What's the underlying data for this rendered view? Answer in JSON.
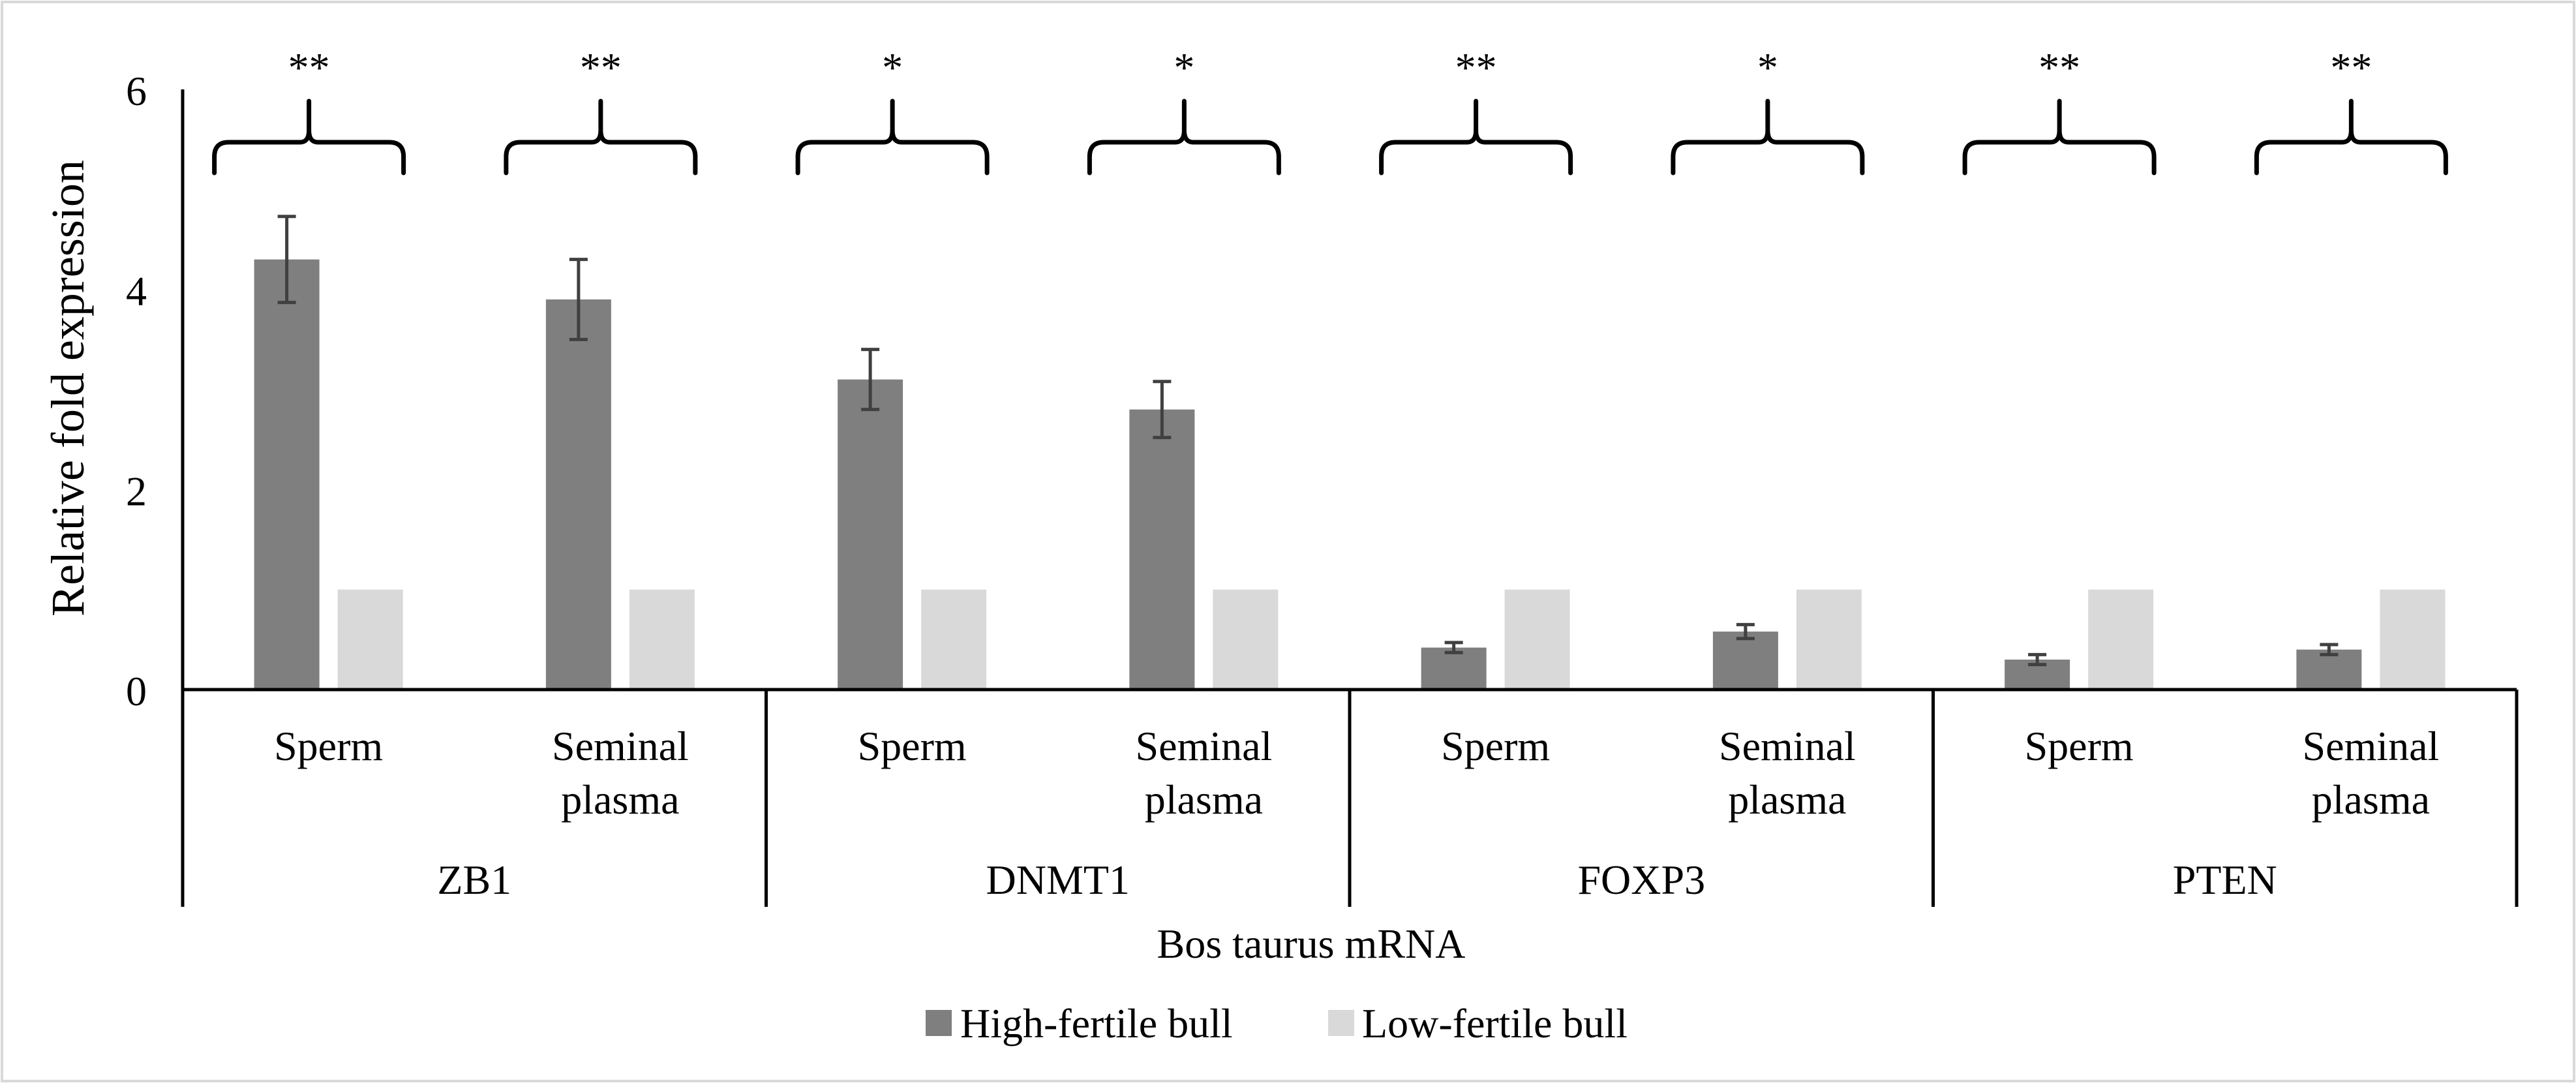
{
  "chart_data": {
    "type": "bar",
    "title": "",
    "xlabel": "Bos taurus mRNA",
    "ylabel": "Relative fold expression",
    "ylim": [
      0,
      6
    ],
    "yticks": [
      0,
      2,
      4,
      6
    ],
    "grid": false,
    "legend_position": "bottom-center",
    "groups": [
      {
        "name": "ZB1",
        "categories": [
          "Sperm",
          "Seminal plasma"
        ]
      },
      {
        "name": "DNMT1",
        "categories": [
          "Sperm",
          "Seminal plasma"
        ]
      },
      {
        "name": "FOXP3",
        "categories": [
          "Sperm",
          "Seminal plasma"
        ]
      },
      {
        "name": "PTEN",
        "categories": [
          "Sperm",
          "Seminal plasma"
        ]
      }
    ],
    "category_labels": [
      {
        "line1": "Sperm",
        "line2": ""
      },
      {
        "line1": "Seminal",
        "line2": "plasma"
      },
      {
        "line1": "Sperm",
        "line2": ""
      },
      {
        "line1": "Seminal",
        "line2": "plasma"
      },
      {
        "line1": "Sperm",
        "line2": ""
      },
      {
        "line1": "Seminal",
        "line2": "plasma"
      },
      {
        "line1": "Sperm",
        "line2": ""
      },
      {
        "line1": "Seminal",
        "line2": "plasma"
      }
    ],
    "series": [
      {
        "name": "High-fertile bull",
        "color": "#7f7f7f",
        "values": [
          4.3,
          3.9,
          3.1,
          2.8,
          0.42,
          0.58,
          0.3,
          0.4
        ],
        "errors": [
          0.43,
          0.4,
          0.3,
          0.28,
          0.05,
          0.07,
          0.05,
          0.05
        ]
      },
      {
        "name": "Low-fertile bull",
        "color": "#d9d9d9",
        "values": [
          1,
          1,
          1,
          1,
          1,
          1,
          1,
          1
        ],
        "errors": null
      }
    ],
    "significance": [
      "**",
      "**",
      "*",
      "*",
      "**",
      "*",
      "**",
      "**"
    ]
  }
}
